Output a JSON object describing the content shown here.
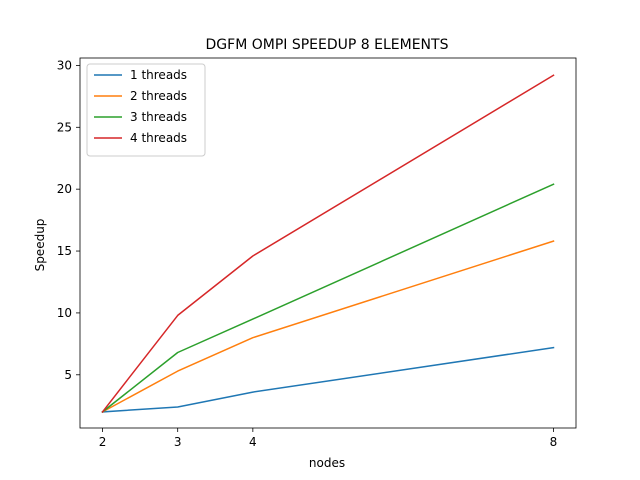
{
  "chart_data": {
    "type": "line",
    "title": "DGFM OMPI SPEEDUP 8 ELEMENTS",
    "xlabel": "nodes",
    "ylabel": "Speedup",
    "x": [
      2,
      3,
      4,
      8
    ],
    "xticks": [
      2,
      3,
      4,
      8
    ],
    "yticks": [
      5,
      10,
      15,
      20,
      25,
      30
    ],
    "xlim": [
      1.7,
      8.3
    ],
    "ylim": [
      0.7,
      30.6
    ],
    "grid": false,
    "legend_position": "top-left",
    "series": [
      {
        "name": "1 threads",
        "color": "#1f77b4",
        "values": [
          2.0,
          2.4,
          3.6,
          7.2
        ]
      },
      {
        "name": "2 threads",
        "color": "#ff7f0e",
        "values": [
          2.0,
          5.3,
          8.0,
          15.8
        ]
      },
      {
        "name": "3 threads",
        "color": "#2ca02c",
        "values": [
          2.0,
          6.8,
          9.5,
          20.4
        ]
      },
      {
        "name": "4 threads",
        "color": "#d62728",
        "values": [
          2.0,
          9.8,
          14.6,
          29.2
        ]
      }
    ]
  }
}
